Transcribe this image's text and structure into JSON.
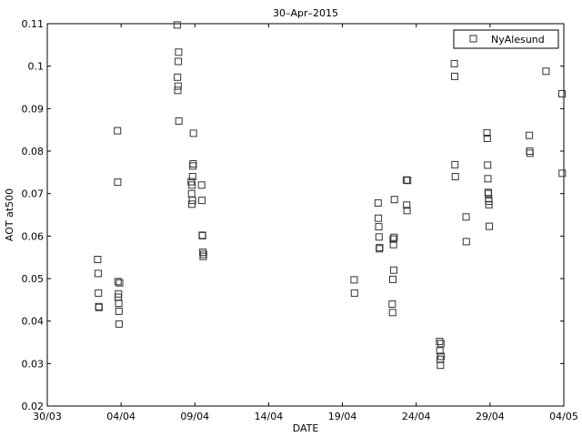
{
  "chart_data": {
    "type": "scatter",
    "title": "30–Apr–2015",
    "xlabel": "DATE",
    "ylabel": "AOT at500",
    "x_tick_labels": [
      "30/03",
      "04/04",
      "09/04",
      "14/04",
      "19/04",
      "24/04",
      "29/04",
      "04/05"
    ],
    "x_ticks": [
      "2015-03-30",
      "2015-04-04",
      "2015-04-09",
      "2015-04-14",
      "2015-04-19",
      "2015-04-24",
      "2015-04-29",
      "2015-05-04"
    ],
    "xlim": [
      "2015-03-30",
      "2015-05-04"
    ],
    "y_tick_labels": [
      "0.02",
      "0.03",
      "0.04",
      "0.05",
      "0.06",
      "0.07",
      "0.08",
      "0.09",
      "0.1",
      "0.11"
    ],
    "ylim": [
      0.02,
      0.11
    ],
    "grid": false,
    "legend_position": "top-right",
    "marker": "open-square",
    "series": [
      {
        "name": "NyAlesund",
        "color": "#333333",
        "points": [
          [
            "2015-04-02 10:00",
            0.0545
          ],
          [
            "2015-04-02 10:40",
            0.0512
          ],
          [
            "2015-04-02 11:10",
            0.0466
          ],
          [
            "2015-04-02 11:40",
            0.0434
          ],
          [
            "2015-04-02 12:10",
            0.0432
          ],
          [
            "2015-04-03 18:10",
            0.0848
          ],
          [
            "2015-04-03 18:30",
            0.0727
          ],
          [
            "2015-04-03 19:00",
            0.0493
          ],
          [
            "2015-04-03 19:20",
            0.0456
          ],
          [
            "2015-04-03 19:50",
            0.0464
          ],
          [
            "2015-04-03 20:10",
            0.0442
          ],
          [
            "2015-04-03 20:30",
            0.0423
          ],
          [
            "2015-04-03 20:40",
            0.0393
          ],
          [
            "2015-04-03 21:30",
            0.049
          ],
          [
            "2015-04-07 19:20",
            0.1097
          ],
          [
            "2015-04-07 19:50",
            0.0974
          ],
          [
            "2015-04-07 20:10",
            0.0943
          ],
          [
            "2015-04-07 20:40",
            0.0953
          ],
          [
            "2015-04-07 21:10",
            0.1011
          ],
          [
            "2015-04-07 21:30",
            0.1033
          ],
          [
            "2015-04-07 22:00",
            0.0871
          ],
          [
            "2015-04-08 18:10",
            0.0728
          ],
          [
            "2015-04-08 18:40",
            0.07
          ],
          [
            "2015-04-08 19:10",
            0.0675
          ],
          [
            "2015-04-08 19:30",
            0.072
          ],
          [
            "2015-04-08 20:00",
            0.0684
          ],
          [
            "2015-04-08 20:20",
            0.074
          ],
          [
            "2015-04-08 20:50",
            0.0765
          ],
          [
            "2015-04-08 21:10",
            0.077
          ],
          [
            "2015-04-08 21:40",
            0.0842
          ],
          [
            "2015-04-09 11:00",
            0.072
          ],
          [
            "2015-04-09 11:30",
            0.0684
          ],
          [
            "2015-04-09 12:00",
            0.0602
          ],
          [
            "2015-04-09 12:30",
            0.0601
          ],
          [
            "2015-04-09 13:00",
            0.0562
          ],
          [
            "2015-04-09 13:30",
            0.0552
          ],
          [
            "2015-04-09 14:00",
            0.0557
          ],
          [
            "2015-04-19 19:00",
            0.0497
          ],
          [
            "2015-04-19 19:30",
            0.0466
          ],
          [
            "2015-04-21 10:00",
            0.0678
          ],
          [
            "2015-04-21 10:30",
            0.0642
          ],
          [
            "2015-04-21 11:00",
            0.0622
          ],
          [
            "2015-04-21 11:30",
            0.0598
          ],
          [
            "2015-04-21 12:00",
            0.057
          ],
          [
            "2015-04-21 12:30",
            0.0573
          ],
          [
            "2015-04-22 09:00",
            0.044
          ],
          [
            "2015-04-22 09:30",
            0.042
          ],
          [
            "2015-04-22 10:00",
            0.0498
          ],
          [
            "2015-04-22 10:30",
            0.0593
          ],
          [
            "2015-04-22 11:00",
            0.058
          ],
          [
            "2015-04-22 11:30",
            0.052
          ],
          [
            "2015-04-22 12:00",
            0.0597
          ],
          [
            "2015-04-22 12:30",
            0.0686
          ],
          [
            "2015-04-23 08:00",
            0.0732
          ],
          [
            "2015-04-23 08:30",
            0.0673
          ],
          [
            "2015-04-23 09:00",
            0.066
          ],
          [
            "2015-04-23 10:00",
            0.0731
          ],
          [
            "2015-04-25 14:00",
            0.0352
          ],
          [
            "2015-04-25 14:30",
            0.033
          ],
          [
            "2015-04-25 15:00",
            0.031
          ],
          [
            "2015-04-25 15:30",
            0.0296
          ],
          [
            "2015-04-25 16:00",
            0.0347
          ],
          [
            "2015-04-25 16:30",
            0.0317
          ],
          [
            "2015-04-26 14:00",
            0.1006
          ],
          [
            "2015-04-26 14:30",
            0.0976
          ],
          [
            "2015-04-26 15:00",
            0.0768
          ],
          [
            "2015-04-26 15:30",
            0.074
          ],
          [
            "2015-04-27 09:00",
            0.0645
          ],
          [
            "2015-04-27 09:30",
            0.0587
          ],
          [
            "2015-04-28 19:00",
            0.0843
          ],
          [
            "2015-04-28 19:30",
            0.083
          ],
          [
            "2015-04-28 20:00",
            0.0767
          ],
          [
            "2015-04-28 20:30",
            0.0735
          ],
          [
            "2015-04-28 21:00",
            0.0703
          ],
          [
            "2015-04-28 21:20",
            0.07
          ],
          [
            "2015-04-28 21:40",
            0.0688
          ],
          [
            "2015-04-28 22:00",
            0.0682
          ],
          [
            "2015-04-28 22:20",
            0.0674
          ],
          [
            "2015-04-28 22:40",
            0.0623
          ],
          [
            "2015-05-01 16:00",
            0.0837
          ],
          [
            "2015-05-01 16:30",
            0.08
          ],
          [
            "2015-05-01 17:00",
            0.0795
          ],
          [
            "2015-05-02 19:00",
            0.0988
          ],
          [
            "2015-05-03 21:00",
            0.0935
          ],
          [
            "2015-05-03 21:30",
            0.0748
          ]
        ]
      }
    ]
  }
}
